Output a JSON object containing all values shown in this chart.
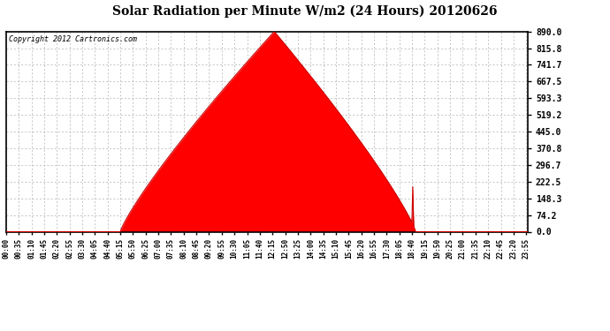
{
  "title": "Solar Radiation per Minute W/m2 (24 Hours) 20120626",
  "copyright_text": "Copyright 2012 Cartronics.com",
  "fill_color": "#ff0000",
  "line_color": "#cc0000",
  "background_color": "#ffffff",
  "grid_color": "#b0b0b0",
  "dashed_zero_color": "#ff0000",
  "ymin": 0.0,
  "ymax": 890.0,
  "ytick_values": [
    0.0,
    74.2,
    148.3,
    222.5,
    296.7,
    370.8,
    445.0,
    519.2,
    593.3,
    667.5,
    741.7,
    815.8,
    890.0
  ],
  "peak_value": 890.0,
  "sunrise_minute": 315,
  "sunset_minute": 1130,
  "peak_minute": 740,
  "total_minutes": 1440,
  "spike_minute": 1122,
  "spike_value": 200,
  "xtick_step": 35
}
